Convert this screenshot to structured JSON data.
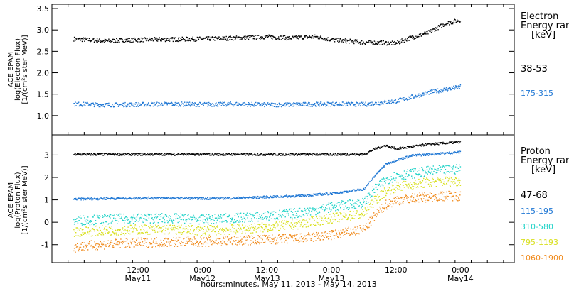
{
  "chart_data": [
    {
      "type": "scatter",
      "panel": "electron",
      "ylabel": [
        "ACE EPAM",
        "log(Electron Flux)",
        "[1/(cm²s ster MeV)]"
      ],
      "ylim": [
        0.55,
        3.6
      ],
      "yticks": [
        "1.0",
        "1.5",
        "2.0",
        "2.5",
        "3.0",
        "3.5"
      ],
      "legend_title": [
        "Electron",
        "Energy ran",
        "[keV]"
      ],
      "series": [
        {
          "name": "38-53",
          "color": "#000000",
          "x": [
            0,
            6,
            12,
            18,
            24,
            30,
            36,
            40,
            45,
            48,
            54,
            60,
            62,
            66,
            69,
            72
          ],
          "y": [
            2.8,
            2.75,
            2.78,
            2.79,
            2.8,
            2.82,
            2.85,
            2.82,
            2.85,
            2.78,
            2.72,
            2.7,
            2.8,
            2.95,
            3.15,
            3.25
          ]
        },
        {
          "name": "175-315",
          "color": "#1f77d4",
          "x": [
            0,
            6,
            12,
            18,
            24,
            30,
            36,
            42,
            48,
            54,
            60,
            63,
            66,
            69,
            72
          ],
          "y": [
            1.28,
            1.26,
            1.27,
            1.28,
            1.27,
            1.28,
            1.26,
            1.27,
            1.28,
            1.27,
            1.35,
            1.45,
            1.55,
            1.62,
            1.68
          ]
        }
      ]
    },
    {
      "type": "scatter",
      "panel": "proton",
      "xlabel": "hours:minutes, May 11, 2013 - May 14, 2013",
      "ylabel": [
        "ACE EPAM",
        "log(Proton Flux)",
        "[1/(cm²s ster MeV)]"
      ],
      "ylim": [
        -1.8,
        3.9
      ],
      "yticks": [
        "-1",
        "0",
        "1",
        "2",
        "3"
      ],
      "xticks": [
        {
          "t1": "12:00",
          "t2": ""
        },
        {
          "t1": "0:00",
          "t2": "May12"
        },
        {
          "t1": "12:00",
          "t2": ""
        },
        {
          "t1": "0:00",
          "t2": "May13"
        },
        {
          "t1": "12:00",
          "t2": ""
        },
        {
          "t1": "0:00",
          "t2": "May14"
        }
      ],
      "xdate_labels": [
        "May11",
        "May12",
        "May13",
        "May13",
        "May14"
      ],
      "legend_title": [
        "Proton",
        "Energy ran",
        "[keV]"
      ],
      "series": [
        {
          "name": "47-68",
          "color": "#000000",
          "x": [
            0,
            6,
            12,
            18,
            24,
            30,
            36,
            42,
            48,
            54,
            56,
            58,
            60,
            63,
            66,
            69,
            72
          ],
          "y": [
            3.05,
            3.05,
            3.05,
            3.05,
            3.05,
            3.05,
            3.05,
            3.05,
            3.05,
            3.05,
            3.3,
            3.45,
            3.3,
            3.4,
            3.5,
            3.55,
            3.6
          ]
        },
        {
          "name": "115-195",
          "color": "#1f77d4",
          "x": [
            0,
            6,
            12,
            18,
            24,
            30,
            36,
            42,
            48,
            54,
            56,
            58,
            60,
            63,
            66,
            69,
            72
          ],
          "y": [
            1.05,
            1.08,
            1.1,
            1.1,
            1.08,
            1.1,
            1.15,
            1.2,
            1.3,
            1.5,
            2.1,
            2.6,
            2.8,
            3.0,
            3.05,
            3.1,
            3.15
          ]
        },
        {
          "name": "310-580",
          "color": "#22d3c8",
          "x": [
            0,
            6,
            12,
            18,
            24,
            30,
            36,
            42,
            48,
            54,
            56,
            58,
            60,
            63,
            66,
            69,
            72
          ],
          "y": [
            0.1,
            0.15,
            0.2,
            0.2,
            0.15,
            0.2,
            0.3,
            0.45,
            0.7,
            0.9,
            1.5,
            1.9,
            2.1,
            2.2,
            2.3,
            2.35,
            2.4
          ]
        },
        {
          "name": "795-1193",
          "color": "#d9e020",
          "x": [
            0,
            6,
            12,
            18,
            24,
            30,
            36,
            42,
            48,
            54,
            56,
            58,
            60,
            63,
            66,
            69,
            72
          ],
          "y": [
            -0.4,
            -0.35,
            -0.3,
            -0.3,
            -0.35,
            -0.3,
            -0.2,
            -0.05,
            0.2,
            0.4,
            1.0,
            1.4,
            1.6,
            1.7,
            1.8,
            1.85,
            1.85
          ]
        },
        {
          "name": "1060-1900",
          "color": "#f08a1c",
          "x": [
            0,
            6,
            12,
            18,
            24,
            30,
            36,
            42,
            48,
            54,
            56,
            58,
            60,
            63,
            66,
            69,
            72
          ],
          "y": [
            -1.1,
            -0.95,
            -0.9,
            -0.85,
            -0.85,
            -0.8,
            -0.75,
            -0.7,
            -0.55,
            -0.3,
            0.3,
            0.8,
            1.0,
            1.1,
            1.15,
            1.2,
            1.2
          ]
        }
      ]
    }
  ],
  "x_range_hours": [
    -4,
    82
  ]
}
